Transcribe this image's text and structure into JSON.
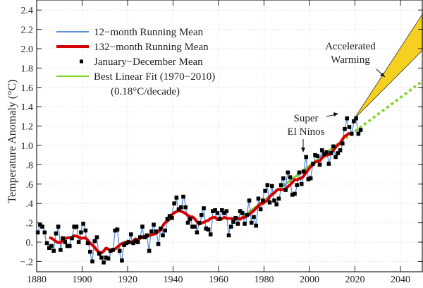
{
  "chart_data": {
    "type": "line",
    "title": "",
    "xlabel": "",
    "ylabel": "Temperature Anomaly (°C)",
    "xlim": [
      1880,
      2050
    ],
    "ylim": [
      -0.3,
      2.5
    ],
    "grid": true,
    "legend_position": "top-left",
    "x_ticks": [
      "1880",
      "1900",
      "1920",
      "1940",
      "1960",
      "1980",
      "2000",
      "2020",
      "2040"
    ],
    "y_ticks": [
      {
        "value": 2.4,
        "label": "2.4"
      },
      {
        "value": 2.2,
        "label": "2.2"
      },
      {
        "value": 2.0,
        "label": "2.0"
      },
      {
        "value": 1.8,
        "label": "1.8"
      },
      {
        "value": 1.6,
        "label": "1.6"
      },
      {
        "value": 1.4,
        "label": "1.4"
      },
      {
        "value": 1.2,
        "label": "1.2"
      },
      {
        "value": 1.0,
        "label": "1.0"
      },
      {
        "value": 0.8,
        "label": ".8"
      },
      {
        "value": 0.6,
        "label": ".6"
      },
      {
        "value": 0.4,
        "label": ".4"
      },
      {
        "value": 0.2,
        "label": ".2"
      },
      {
        "value": 0.0,
        "label": "0."
      },
      {
        "value": -0.2,
        "label": "−.2"
      }
    ],
    "legend": [
      {
        "label": "12−month Running Mean",
        "color": "#5b8fd9",
        "kind": "line"
      },
      {
        "label": "132−month Running Mean",
        "color": "#d40000",
        "kind": "thick-line"
      },
      {
        "label": "January−December Mean",
        "color": "#000000",
        "kind": "square"
      },
      {
        "label": "Best Linear Fit (1970−2010)",
        "color": "#7ed321",
        "kind": "line"
      },
      {
        "label": "(0.18°C/decade)",
        "kind": "text"
      }
    ],
    "annual_mean": {
      "start_year": 1880,
      "values": [
        0.1,
        0.18,
        0.16,
        0.1,
        -0.01,
        -0.06,
        -0.04,
        -0.09,
        0.09,
        0.16,
        -0.08,
        0.04,
        0.0,
        -0.04,
        -0.04,
        0.04,
        0.16,
        0.16,
        0.0,
        0.1,
        0.19,
        0.12,
        -0.01,
        -0.1,
        -0.2,
        0.01,
        0.05,
        -0.12,
        -0.16,
        -0.21,
        -0.16,
        -0.17,
        -0.09,
        -0.08,
        0.12,
        0.13,
        -0.09,
        -0.19,
        -0.03,
        -0.01,
        0.0,
        0.08,
        -0.01,
        0.01,
        0.0,
        0.05,
        0.16,
        0.05,
        0.07,
        -0.09,
        0.11,
        0.18,
        0.11,
        -0.02,
        0.14,
        0.07,
        0.12,
        0.24,
        0.27,
        0.25,
        0.4,
        0.46,
        0.34,
        0.36,
        0.47,
        0.36,
        0.2,
        0.24,
        0.16,
        0.16,
        0.1,
        0.2,
        0.28,
        0.35,
        0.14,
        0.13,
        0.08,
        0.32,
        0.33,
        0.3,
        0.24,
        0.33,
        0.3,
        0.32,
        0.07,
        0.16,
        0.21,
        0.25,
        0.19,
        0.32,
        0.3,
        0.19,
        0.28,
        0.43,
        0.2,
        0.26,
        0.17,
        0.45,
        0.34,
        0.43,
        0.53,
        0.59,
        0.41,
        0.58,
        0.43,
        0.39,
        0.45,
        0.59,
        0.66,
        0.54,
        0.72,
        0.67,
        0.49,
        0.5,
        0.59,
        0.72,
        0.6,
        0.73,
        0.88,
        0.65,
        0.66,
        0.81,
        0.9,
        0.89,
        0.8,
        0.95,
        0.91,
        0.93,
        0.81,
        0.92,
        0.99,
        0.88,
        0.92,
        0.95,
        1.02,
        1.17,
        1.28,
        1.19,
        1.12,
        1.25,
        1.28,
        1.12,
        1.16
      ]
    },
    "running_mean_months": [
      12,
      132
    ],
    "linear_fit": {
      "x": [
        1970,
        2010
      ],
      "y": [
        0.25,
        0.97
      ],
      "extension": {
        "x": [
          2010,
          2050
        ],
        "y": [
          0.97,
          1.67
        ],
        "style": "dotted"
      }
    },
    "accelerated_warming_wedge": {
      "apex": [
        2019.5,
        1.27
      ],
      "upper_at_2050": 2.37,
      "lower_at_2050": 1.99,
      "color": "#f5d020"
    },
    "annotations": [
      {
        "text": "Accelerated",
        "text2": "Warming"
      },
      {
        "text": "Super",
        "text2": "El Ninos"
      }
    ]
  }
}
